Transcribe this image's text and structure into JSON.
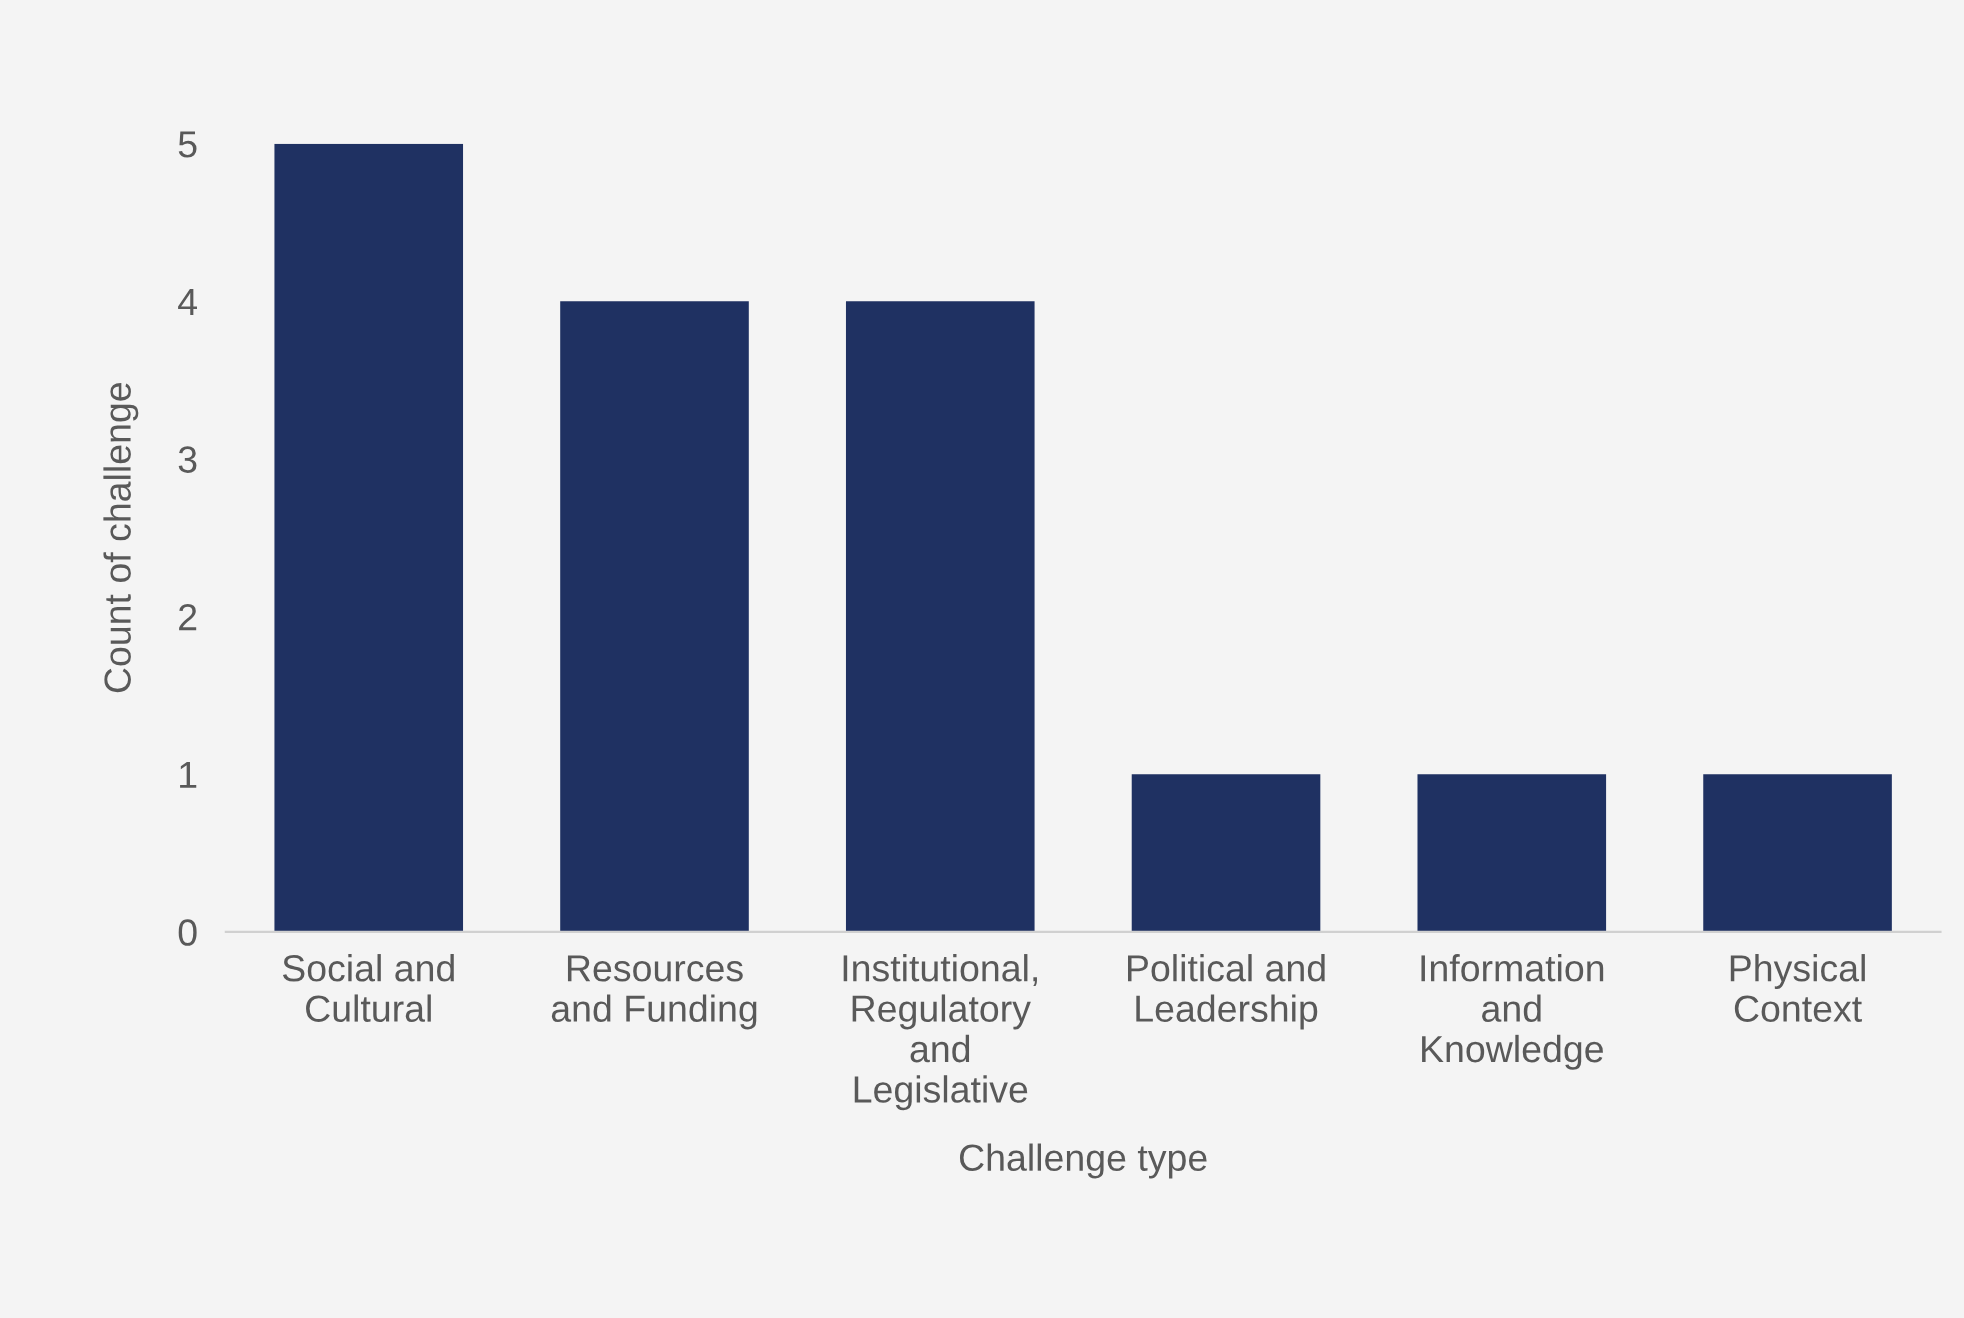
{
  "chart_data": {
    "type": "bar",
    "xlabel": "Challenge type",
    "ylabel": "Count of challenge",
    "categories": [
      "Social and\nCultural",
      "Resources\nand Funding",
      "Institutional,\nRegulatory\nand\nLegislative",
      "Political and\nLeadership",
      "Information\nand\nKnowledge",
      "Physical\nContext"
    ],
    "values": [
      5,
      4,
      4,
      1,
      1,
      1
    ],
    "color": "#1f3162",
    "ylim": [
      0,
      5
    ],
    "yticks": [
      0,
      1,
      2,
      3,
      4,
      5
    ],
    "grid": false,
    "legend": false
  }
}
